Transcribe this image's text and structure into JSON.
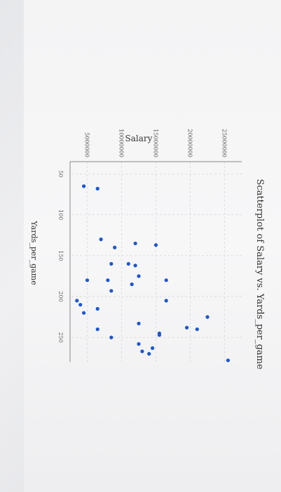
{
  "chart_data": {
    "type": "scatter",
    "title": "Scatterplot of Salary vs. Yards_per_game",
    "xlabel": "Yards_per_game",
    "ylabel": "Salary",
    "xlim": [
      35,
      280
    ],
    "ylim": [
      2500000,
      27500000
    ],
    "x_ticks": [
      50,
      100,
      150,
      200,
      250
    ],
    "y_ticks": [
      5000000,
      10000000,
      15000000,
      20000000,
      25000000
    ],
    "x_tick_labels": [
      "50",
      "100",
      "150",
      "200",
      "250"
    ],
    "y_tick_labels": [
      "5000000",
      "10000000",
      "15000000",
      "20000000",
      "25000000"
    ],
    "grid": true,
    "legend": "none",
    "point_color": "#1a56d6",
    "points": [
      {
        "x": 65,
        "y": 4500000
      },
      {
        "x": 68,
        "y": 6500000
      },
      {
        "x": 130,
        "y": 7000000
      },
      {
        "x": 140,
        "y": 9000000
      },
      {
        "x": 160,
        "y": 8500000
      },
      {
        "x": 135,
        "y": 12000000
      },
      {
        "x": 137,
        "y": 15000000
      },
      {
        "x": 180,
        "y": 8000000
      },
      {
        "x": 180,
        "y": 5000000
      },
      {
        "x": 205,
        "y": 3500000
      },
      {
        "x": 210,
        "y": 4000000
      },
      {
        "x": 220,
        "y": 4500000
      },
      {
        "x": 215,
        "y": 6500000
      },
      {
        "x": 240,
        "y": 6500000
      },
      {
        "x": 250,
        "y": 8500000
      },
      {
        "x": 193,
        "y": 8500000
      },
      {
        "x": 160,
        "y": 11000000
      },
      {
        "x": 162,
        "y": 12000000
      },
      {
        "x": 175,
        "y": 12500000
      },
      {
        "x": 185,
        "y": 11500000
      },
      {
        "x": 233,
        "y": 12500000
      },
      {
        "x": 258,
        "y": 12500000
      },
      {
        "x": 267,
        "y": 13000000
      },
      {
        "x": 263,
        "y": 14500000
      },
      {
        "x": 245,
        "y": 15500000
      },
      {
        "x": 247,
        "y": 15500000
      },
      {
        "x": 270,
        "y": 14000000
      },
      {
        "x": 205,
        "y": 16500000
      },
      {
        "x": 180,
        "y": 16500000
      },
      {
        "x": 238,
        "y": 19500000
      },
      {
        "x": 240,
        "y": 21000000
      },
      {
        "x": 225,
        "y": 22500000
      },
      {
        "x": 278,
        "y": 25500000
      }
    ]
  }
}
